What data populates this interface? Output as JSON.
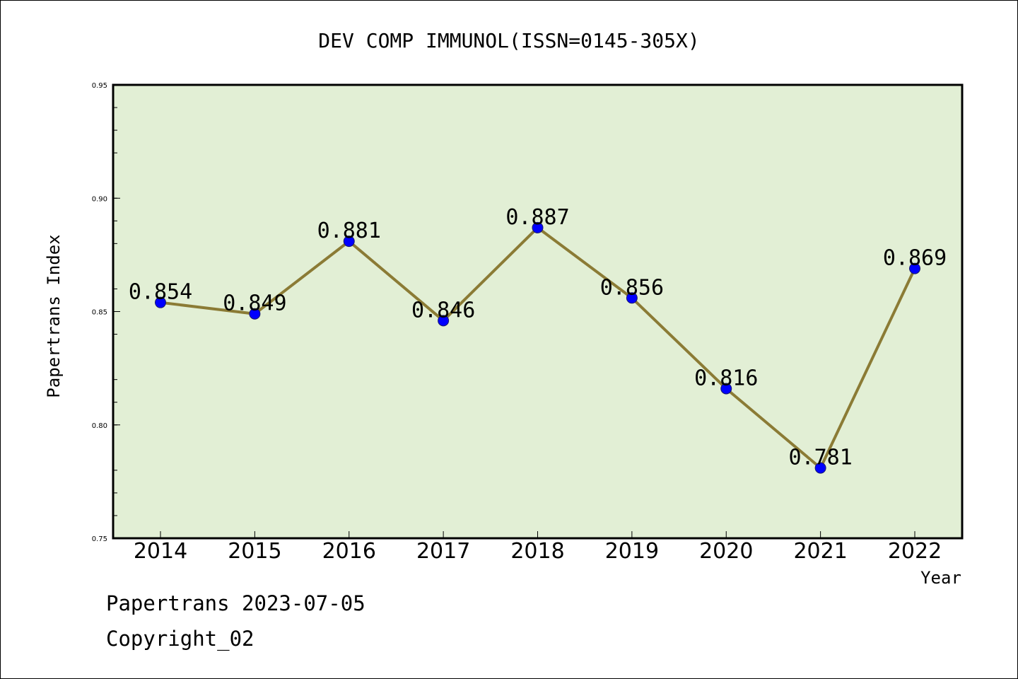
{
  "chart_data": {
    "type": "line",
    "title": "DEV COMP IMMUNOL(ISSN=0145-305X)",
    "xlabel": "Year",
    "ylabel": "Papertrans Index",
    "x": [
      "2014",
      "2015",
      "2016",
      "2017",
      "2018",
      "2019",
      "2020",
      "2021",
      "2022"
    ],
    "series": [
      {
        "values": [
          0.854,
          0.849,
          0.881,
          0.846,
          0.887,
          0.856,
          0.816,
          0.781,
          0.869
        ]
      }
    ],
    "data_labels": [
      "0.854",
      "0.849",
      "0.881",
      "0.846",
      "0.887",
      "0.856",
      "0.816",
      "0.781",
      "0.869"
    ],
    "ylim": [
      0.75,
      0.95
    ],
    "yticks": [
      "0.75",
      "0.80",
      "0.85",
      "0.90",
      "0.95"
    ],
    "grid": false,
    "colors": {
      "plot_background": "#e2efd5",
      "line": "#8b7b35",
      "marker": "#0000ff"
    }
  },
  "footer": {
    "date_text": "Papertrans 2023-07-05",
    "copyright_text": "Copyright_02"
  }
}
